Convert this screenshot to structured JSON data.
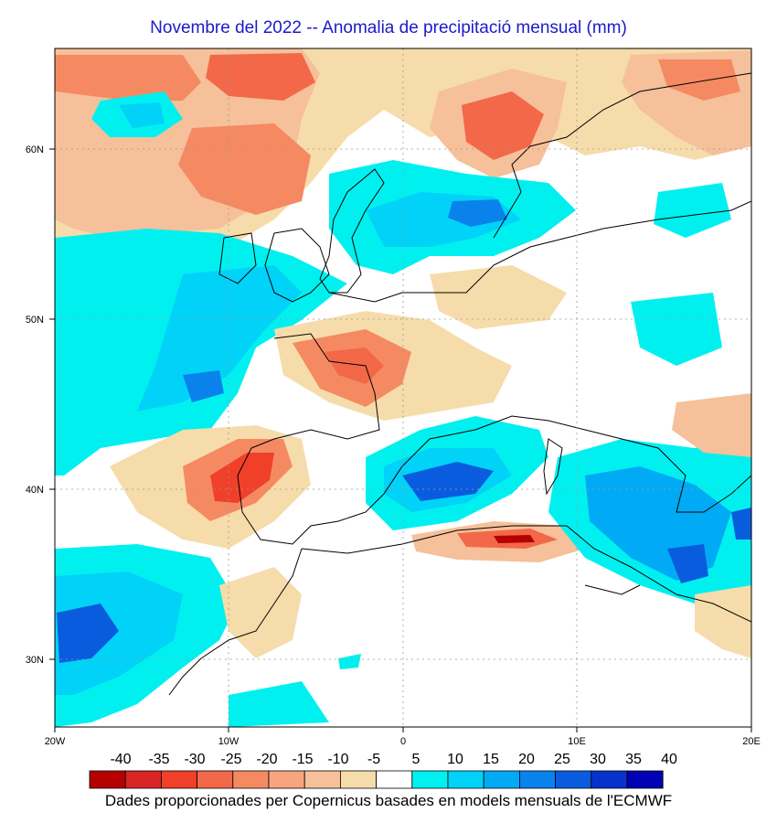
{
  "title": "Novembre del 2022 -- Anomalia de precipitació mensual (mm)",
  "lat_labels": [
    "60N",
    "50N",
    "40N",
    "30N"
  ],
  "lon_labels": [
    "20W",
    "10W",
    "0",
    "10E",
    "20E"
  ],
  "legend": {
    "labels": [
      "-40",
      "-35",
      "-30",
      "-25",
      "-20",
      "-15",
      "-10",
      "-5",
      "5",
      "10",
      "15",
      "20",
      "25",
      "30",
      "35",
      "40"
    ],
    "colors": [
      "#b40000",
      "#d82424",
      "#f0402a",
      "#f26848",
      "#f58a62",
      "#f7a57e",
      "#f5c09a",
      "#f6dcaa",
      "#ffffff",
      "#00f0f0",
      "#00d2f8",
      "#00aaf5",
      "#0a82ec",
      "#0a5cde",
      "#0832cc",
      "#0000b4"
    ]
  },
  "credit": "Dades proporcionades per Copernicus basades en models mensuals de l'ECMWF"
}
